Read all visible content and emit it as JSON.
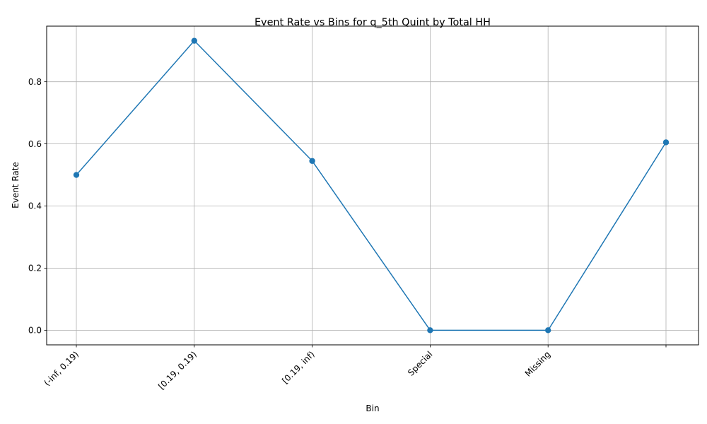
{
  "chart_data": {
    "type": "line",
    "title": "Event Rate vs Bins for q_5th Quint by Total HH",
    "xlabel": "Bin",
    "ylabel": "Event Rate",
    "categories": [
      "(-inf, 0.19)",
      "[0.19, 0.19)",
      "[0.19, inf)",
      "Special",
      "Missing",
      ""
    ],
    "series": [
      {
        "values": [
          0.5,
          0.932,
          0.545,
          0.0,
          0.0,
          0.605
        ]
      }
    ],
    "y_ticks": [
      0.0,
      0.2,
      0.4,
      0.6,
      0.8
    ],
    "y_tick_labels": [
      "0.0",
      "0.2",
      "0.4",
      "0.6",
      "0.8"
    ],
    "ylim": [
      -0.047,
      0.979
    ],
    "grid": true,
    "color": "#1f77b4",
    "marker": "circle"
  }
}
